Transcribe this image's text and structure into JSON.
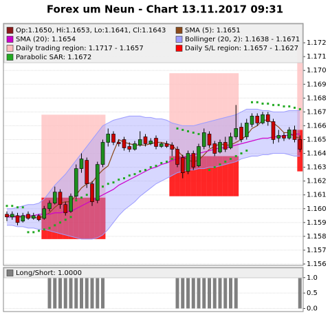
{
  "chart_data": [
    {
      "type": "candlestick",
      "title": "Forex um Neun - Chart 13.11.2017 09:31",
      "candle_label": "Op:1.1650, Hi:1.1653, Lo:1.1641, Cl:1.1643",
      "candle_color": "#8b1a1a",
      "up_color": "#1e8f1e",
      "down_color": "#cc0000",
      "open": [
        1.1596,
        1.1594,
        1.1595,
        1.1591,
        1.1596,
        1.1593,
        1.1595,
        1.1593,
        1.16,
        1.1604,
        1.1612,
        1.1603,
        1.1598,
        1.1609,
        1.1629,
        1.1635,
        1.1618,
        1.1606,
        1.1632,
        1.1648,
        1.1654,
        1.1648,
        1.165,
        1.1645,
        1.1643,
        1.1646,
        1.1652,
        1.1647,
        1.1651,
        1.1645,
        1.1647,
        1.1646,
        1.1643,
        1.1637,
        1.1627,
        1.164,
        1.1631,
        1.1645,
        1.1654,
        1.1647,
        1.1641,
        1.1648,
        1.1644,
        1.1652,
        1.1659,
        1.1652,
        1.1661,
        1.1667,
        1.1662,
        1.1668,
        1.1663,
        1.1651,
        1.1653,
        1.1651,
        1.1657,
        1.165
      ],
      "high": [
        1.1598,
        1.1598,
        1.1597,
        1.1597,
        1.1598,
        1.1597,
        1.1596,
        1.1602,
        1.1606,
        1.1616,
        1.1614,
        1.1605,
        1.1611,
        1.1632,
        1.164,
        1.1637,
        1.162,
        1.1634,
        1.165,
        1.1658,
        1.1656,
        1.165,
        1.1652,
        1.1648,
        1.1649,
        1.1656,
        1.1654,
        1.1651,
        1.1653,
        1.1648,
        1.1649,
        1.1648,
        1.1645,
        1.1639,
        1.1642,
        1.1642,
        1.1647,
        1.1658,
        1.1656,
        1.1649,
        1.165,
        1.1652,
        1.1655,
        1.1675,
        1.1662,
        1.1665,
        1.1669,
        1.1669,
        1.167,
        1.167,
        1.1665,
        1.1657,
        1.1655,
        1.1659,
        1.166,
        1.1653
      ],
      "low": [
        1.1591,
        1.1592,
        1.1588,
        1.159,
        1.1592,
        1.1592,
        1.1591,
        1.1592,
        1.1598,
        1.1603,
        1.16,
        1.1595,
        1.1597,
        1.1607,
        1.1626,
        1.1615,
        1.1602,
        1.1604,
        1.163,
        1.1645,
        1.1646,
        1.1645,
        1.1642,
        1.1641,
        1.1642,
        1.1645,
        1.1645,
        1.1646,
        1.1643,
        1.1644,
        1.1644,
        1.1638,
        1.163,
        1.1622,
        1.1625,
        1.1628,
        1.163,
        1.1643,
        1.1644,
        1.1638,
        1.164,
        1.1641,
        1.1643,
        1.165,
        1.1648,
        1.165,
        1.1659,
        1.166,
        1.1661,
        1.166,
        1.1647,
        1.1648,
        1.1649,
        1.165,
        1.1648,
        1.1641
      ],
      "close": [
        1.1594,
        1.1596,
        1.159,
        1.1595,
        1.1593,
        1.1595,
        1.1592,
        1.16,
        1.1604,
        1.1612,
        1.1603,
        1.1597,
        1.1609,
        1.1629,
        1.1636,
        1.1618,
        1.1605,
        1.1632,
        1.1648,
        1.1654,
        1.1648,
        1.1647,
        1.1644,
        1.1643,
        1.1647,
        1.165,
        1.1647,
        1.1649,
        1.1645,
        1.1647,
        1.1645,
        1.1643,
        1.1632,
        1.1626,
        1.164,
        1.163,
        1.1645,
        1.1655,
        1.1646,
        1.164,
        1.1648,
        1.1643,
        1.1652,
        1.1658,
        1.165,
        1.1662,
        1.1667,
        1.1662,
        1.1668,
        1.1663,
        1.165,
        1.1653,
        1.1651,
        1.1657,
        1.165,
        1.1643
      ],
      "bands": [
        {
          "name": "Daily trading region: 1.1717 - 1.1657",
          "color": "#ffbcbc",
          "upper": [
            null,
            null,
            null,
            null,
            null,
            null,
            null,
            1.1668,
            1.1668,
            1.1668,
            1.1668,
            1.1668,
            1.1668,
            1.1668,
            1.1668,
            1.1668,
            1.1668,
            1.1668,
            1.1668,
            null,
            null,
            null,
            null,
            null,
            null,
            null,
            null,
            null,
            null,
            null,
            null,
            1.1698,
            1.1698,
            1.1698,
            1.1698,
            1.1698,
            1.1698,
            1.1698,
            1.1698,
            1.1698,
            1.1698,
            1.1698,
            1.1698,
            1.1698,
            null,
            null,
            null,
            null,
            null,
            null,
            null,
            null,
            null,
            null,
            null,
            1.1717
          ],
          "lower": [
            null,
            null,
            null,
            null,
            null,
            null,
            null,
            1.1608,
            1.1608,
            1.1608,
            1.1608,
            1.1608,
            1.1608,
            1.1608,
            1.1608,
            1.1608,
            1.1608,
            1.1608,
            1.1608,
            null,
            null,
            null,
            null,
            null,
            null,
            null,
            null,
            null,
            null,
            null,
            null,
            1.1638,
            1.1638,
            1.1638,
            1.1638,
            1.1638,
            1.1638,
            1.1638,
            1.1638,
            1.1638,
            1.1638,
            1.1638,
            1.1638,
            1.1638,
            null,
            null,
            null,
            null,
            null,
            null,
            null,
            null,
            null,
            null,
            null,
            1.1657
          ]
        },
        {
          "name": "Daily S/L region: 1.1657 - 1.1627",
          "color": "#ff0000",
          "upper": [
            null,
            null,
            null,
            null,
            null,
            null,
            null,
            1.1608,
            1.1608,
            1.1608,
            1.1608,
            1.1608,
            1.1608,
            1.1608,
            1.1608,
            1.1608,
            1.1608,
            1.1608,
            1.1608,
            null,
            null,
            null,
            null,
            null,
            null,
            null,
            null,
            null,
            null,
            null,
            null,
            1.1638,
            1.1638,
            1.1638,
            1.1638,
            1.1638,
            1.1638,
            1.1638,
            1.1638,
            1.1638,
            1.1638,
            1.1638,
            1.1638,
            1.1638,
            null,
            null,
            null,
            null,
            null,
            null,
            null,
            null,
            null,
            null,
            null,
            1.1657
          ],
          "lower": [
            null,
            null,
            null,
            null,
            null,
            null,
            null,
            1.1578,
            1.1578,
            1.1578,
            1.1578,
            1.1578,
            1.1578,
            1.1578,
            1.1578,
            1.1578,
            1.1578,
            1.1578,
            1.1578,
            null,
            null,
            null,
            null,
            null,
            null,
            null,
            null,
            null,
            null,
            null,
            null,
            1.1609,
            1.1609,
            1.1609,
            1.1609,
            1.1609,
            1.1609,
            1.1609,
            1.1609,
            1.1609,
            1.1609,
            1.1609,
            1.1609,
            1.1609,
            null,
            null,
            null,
            null,
            null,
            null,
            null,
            null,
            null,
            null,
            null,
            1.1627
          ]
        },
        {
          "name": "Bollinger (20, 2): 1.1638 - 1.1671",
          "color": "#9c9cff",
          "upper": [
            1.16,
            1.16,
            1.1601,
            1.1602,
            1.1603,
            1.1603,
            1.1604,
            1.1607,
            1.1612,
            1.1617,
            1.1621,
            1.1625,
            1.163,
            1.1635,
            1.164,
            1.1645,
            1.165,
            1.1655,
            1.166,
            1.1662,
            1.1664,
            1.1665,
            1.1666,
            1.1667,
            1.1667,
            1.1667,
            1.1666,
            1.1666,
            1.1665,
            1.1665,
            1.1664,
            1.1662,
            1.1661,
            1.166,
            1.166,
            1.166,
            1.1661,
            1.1662,
            1.1663,
            1.1664,
            1.1665,
            1.1666,
            1.1667,
            1.1668,
            1.167,
            1.1672,
            1.1672,
            1.1672,
            1.1671,
            1.1671,
            1.167,
            1.167,
            1.167,
            1.1671,
            1.1671,
            1.1671
          ],
          "lower": [
            1.1588,
            1.1588,
            1.1587,
            1.1587,
            1.1586,
            1.1586,
            1.1585,
            1.1585,
            1.1584,
            1.1583,
            1.1582,
            1.1581,
            1.158,
            1.1579,
            1.1578,
            1.1578,
            1.1578,
            1.1579,
            1.1581,
            1.1585,
            1.159,
            1.1595,
            1.1599,
            1.1602,
            1.1605,
            1.1609,
            1.1612,
            1.1615,
            1.1618,
            1.162,
            1.1622,
            1.1624,
            1.1626,
            1.1627,
            1.1628,
            1.1628,
            1.1629,
            1.1629,
            1.163,
            1.163,
            1.1631,
            1.1632,
            1.1633,
            1.1634,
            1.1636,
            1.1637,
            1.1638,
            1.1638,
            1.1639,
            1.1639,
            1.164,
            1.164,
            1.164,
            1.1639,
            1.1638,
            1.1638
          ]
        }
      ],
      "series": [
        {
          "name": "SMA (5): 1.1651",
          "color": "#8b4a1a",
          "style": "line",
          "values": [
            1.1595,
            1.1595,
            1.1594,
            1.1594,
            1.1594,
            1.1594,
            1.1593,
            1.1595,
            1.1597,
            1.1601,
            1.1604,
            1.1605,
            1.1605,
            1.161,
            1.1615,
            1.1618,
            1.1619,
            1.1624,
            1.1628,
            1.1631,
            1.1641,
            1.165,
            1.1648,
            1.1647,
            1.1646,
            1.1646,
            1.1646,
            1.1647,
            1.1648,
            1.1648,
            1.1647,
            1.1646,
            1.1642,
            1.1638,
            1.1635,
            1.1634,
            1.1635,
            1.1639,
            1.1643,
            1.1645,
            1.1647,
            1.1646,
            1.1646,
            1.1648,
            1.165,
            1.1653,
            1.1658,
            1.166,
            1.1664,
            1.1664,
            1.1662,
            1.1659,
            1.1655,
            1.1655,
            1.1652,
            1.1651
          ]
        },
        {
          "name": "SMA (20): 1.1654",
          "color": "#cc00cc",
          "style": "line",
          "values": [
            1.1594,
            1.1594,
            1.1594,
            1.1595,
            1.1595,
            1.1595,
            1.1596,
            1.1596,
            1.1596,
            1.1597,
            1.1597,
            1.1598,
            1.1598,
            1.16,
            1.1602,
            1.1604,
            1.1606,
            1.1608,
            1.161,
            1.1612,
            1.1614,
            1.1617,
            1.1619,
            1.1621,
            1.1623,
            1.1625,
            1.1627,
            1.1629,
            1.163,
            1.1632,
            1.1633,
            1.1635,
            1.1636,
            1.1637,
            1.1638,
            1.1639,
            1.164,
            1.1641,
            1.1642,
            1.1643,
            1.1644,
            1.1644,
            1.1645,
            1.1646,
            1.1647,
            1.1648,
            1.1649,
            1.165,
            1.1651,
            1.1651,
            1.1652,
            1.1652,
            1.1653,
            1.1653,
            1.1654,
            1.1654
          ]
        },
        {
          "name": "Parabolic SAR: 1.1672",
          "color": "#22aa22",
          "style": "dots",
          "values": [
            1.1602,
            1.1602,
            1.1601,
            1.1601,
            1.1583,
            1.1583,
            1.1584,
            1.1585,
            1.1586,
            1.1588,
            1.159,
            1.1592,
            1.1594,
            1.1606,
            1.1608,
            1.161,
            1.1612,
            1.1614,
            1.1616,
            1.1618,
            1.1619,
            1.1621,
            1.1622,
            1.1624,
            1.1625,
            1.1627,
            1.1628,
            1.163,
            1.1631,
            1.1633,
            1.1634,
            1.1636,
            1.1658,
            1.1657,
            1.1656,
            1.1655,
            1.1654,
            1.1653,
            1.1628,
            1.163,
            1.1632,
            1.1634,
            1.1636,
            1.1638,
            1.164,
            1.1642,
            1.1677,
            1.1677,
            1.1676,
            1.1676,
            1.1675,
            1.1675,
            1.1674,
            1.1674,
            1.1673,
            1.1672
          ]
        }
      ],
      "ylim": [
        1.1559,
        1.1734
      ],
      "yticks": [
        1.156,
        1.157,
        1.158,
        1.159,
        {
          "value": 1.16,
          "label": "1.160"
        },
        1.161,
        1.162,
        1.163,
        1.164,
        1.165,
        1.166,
        1.167,
        1.168,
        1.169,
        {
          "value": 1.17,
          "label": "1.170"
        },
        1.171,
        1.172
      ],
      "grid": true
    },
    {
      "type": "bar",
      "series": [
        {
          "name": "Long/Short: 1.0000",
          "color": "#808080",
          "values": [
            0,
            0,
            0,
            0,
            0,
            0,
            0,
            0,
            1,
            1,
            1,
            1,
            1,
            1,
            1,
            1,
            1,
            1,
            1,
            0,
            0,
            0,
            0,
            0,
            0,
            0,
            0,
            0,
            0,
            0,
            0,
            0,
            1,
            1,
            1,
            1,
            1,
            1,
            1,
            1,
            1,
            1,
            1,
            1,
            0,
            0,
            0,
            0,
            0,
            0,
            0,
            0,
            0,
            0,
            0,
            1
          ]
        }
      ],
      "ylim": [
        -0.1,
        1.33
      ],
      "yticks": [
        {
          "value": 0,
          "label": "0.0"
        },
        0.5,
        {
          "value": 1,
          "label": "1.0"
        }
      ],
      "grid": true
    }
  ]
}
